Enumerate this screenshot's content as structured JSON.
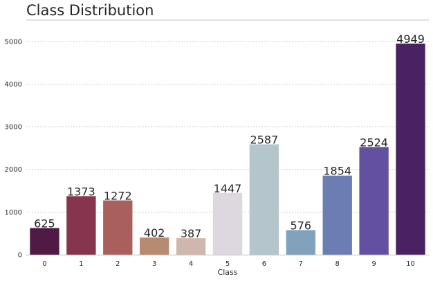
{
  "chart_data": {
    "type": "bar",
    "title": "Class Distribution",
    "xlabel": "Class",
    "ylabel": "",
    "categories": [
      "0",
      "1",
      "2",
      "3",
      "4",
      "5",
      "6",
      "7",
      "8",
      "9",
      "10"
    ],
    "values": [
      625,
      1373,
      1272,
      402,
      387,
      1447,
      2587,
      576,
      1854,
      2524,
      4949
    ],
    "colors": [
      "#4f1a43",
      "#87354f",
      "#a95f5c",
      "#b98a72",
      "#cfb8ab",
      "#ddd8e0",
      "#b4c5cc",
      "#81a2bd",
      "#6b7db3",
      "#6350a1",
      "#4a2263"
    ],
    "ylim": [
      0,
      5500
    ],
    "yticks": [
      0,
      1000,
      2000,
      3000,
      4000,
      5000
    ],
    "grid": "y-dotted",
    "legend": "none"
  }
}
